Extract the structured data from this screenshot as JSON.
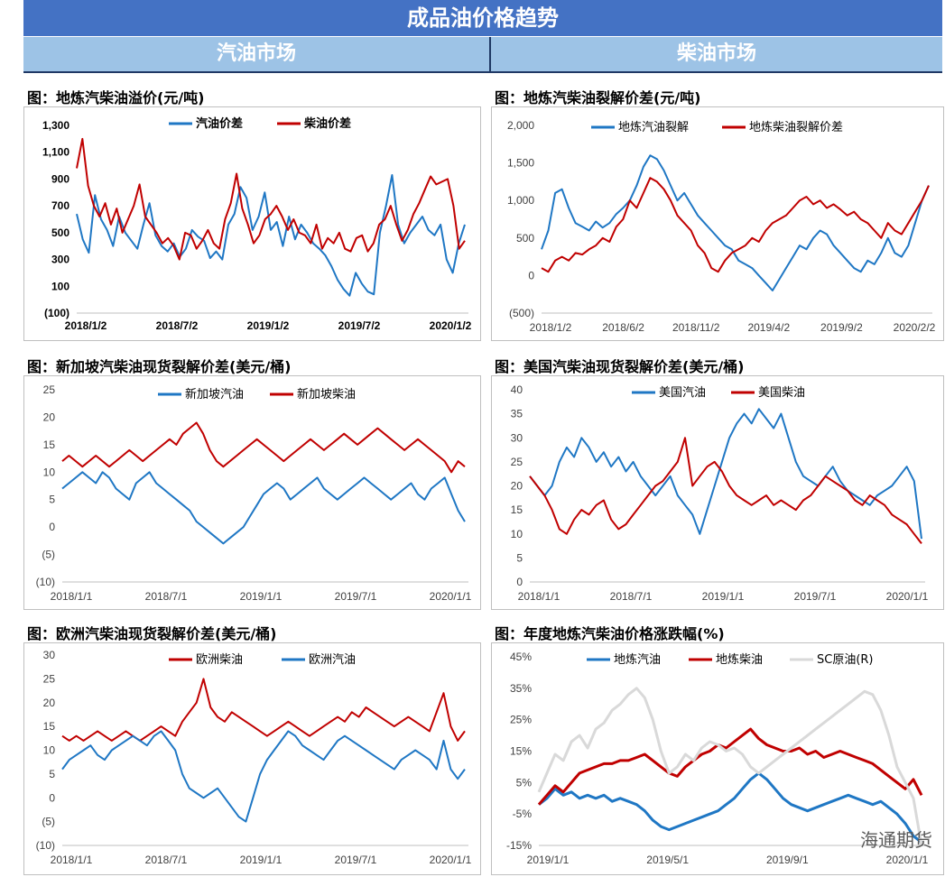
{
  "header": {
    "title": "成品油价格趋势",
    "left_section": "汽油市场",
    "right_section": "柴油市场"
  },
  "watermark": "海通期货",
  "chart_data": [
    {
      "type": "line",
      "title": "图：地炼汽柴油溢价(元/吨)",
      "x_labels": [
        "2018/1/2",
        "2018/7/2",
        "2019/1/2",
        "2019/7/2",
        "2020/1/2"
      ],
      "y_ticks": [
        "1,300",
        "1,100",
        "900",
        "700",
        "500",
        "300",
        "100",
        "(100)"
      ],
      "ylim": [
        -100,
        1300
      ],
      "series": [
        {
          "name": "汽油价差",
          "color": "#1f77c4",
          "values": [
            640,
            450,
            350,
            780,
            600,
            520,
            400,
            620,
            500,
            440,
            380,
            560,
            720,
            480,
            400,
            360,
            420,
            320,
            380,
            520,
            470,
            440,
            310,
            360,
            300,
            560,
            640,
            840,
            760,
            520,
            620,
            800,
            520,
            580,
            400,
            620,
            450,
            560,
            500,
            420,
            380,
            330,
            250,
            150,
            80,
            30,
            200,
            120,
            60,
            40,
            500,
            700,
            930,
            560,
            420,
            500,
            560,
            620,
            520,
            480,
            560,
            300,
            200,
            420,
            560
          ]
        },
        {
          "name": "柴油价差",
          "color": "#c00000",
          "values": [
            980,
            1200,
            850,
            700,
            620,
            720,
            560,
            680,
            500,
            600,
            700,
            860,
            620,
            560,
            500,
            420,
            460,
            400,
            300,
            500,
            480,
            380,
            440,
            520,
            420,
            380,
            600,
            720,
            940,
            680,
            560,
            420,
            480,
            600,
            640,
            700,
            620,
            520,
            600,
            500,
            480,
            420,
            560,
            380,
            460,
            420,
            500,
            380,
            360,
            460,
            480,
            360,
            420,
            560,
            600,
            700,
            560,
            440,
            520,
            640,
            720,
            820,
            920,
            860,
            880,
            900,
            700,
            380,
            440
          ]
        }
      ]
    },
    {
      "type": "line",
      "title": "图：地炼汽柴油裂解价差(元/吨)",
      "x_labels": [
        "2018/1/2",
        "2018/6/2",
        "2018/11/2",
        "2019/4/2",
        "2019/9/2",
        "2020/2/2"
      ],
      "y_ticks": [
        "2,000",
        "1,500",
        "1,000",
        "500",
        "0",
        "(500)"
      ],
      "ylim": [
        -500,
        2000
      ],
      "series": [
        {
          "name": "地炼汽油裂解",
          "color": "#1f77c4",
          "values": [
            350,
            600,
            1100,
            1150,
            900,
            700,
            650,
            600,
            720,
            640,
            700,
            820,
            900,
            1000,
            1200,
            1450,
            1600,
            1550,
            1400,
            1200,
            1000,
            1100,
            950,
            800,
            700,
            600,
            500,
            400,
            350,
            200,
            150,
            100,
            0,
            -100,
            -200,
            -50,
            100,
            250,
            400,
            350,
            500,
            600,
            550,
            400,
            300,
            200,
            100,
            50,
            200,
            150,
            300,
            500,
            300,
            250,
            400,
            700,
            1000,
            1200
          ]
        },
        {
          "name": "地炼柴油裂解价差",
          "color": "#c00000",
          "values": [
            100,
            50,
            200,
            250,
            200,
            300,
            280,
            350,
            400,
            500,
            450,
            650,
            750,
            1000,
            900,
            1100,
            1300,
            1250,
            1150,
            1000,
            800,
            700,
            600,
            400,
            300,
            100,
            50,
            200,
            300,
            350,
            400,
            500,
            450,
            600,
            700,
            750,
            800,
            900,
            1000,
            1050,
            950,
            1000,
            900,
            950,
            880,
            800,
            850,
            750,
            700,
            600,
            500,
            700,
            600,
            550,
            700,
            850,
            1000,
            1200
          ]
        }
      ]
    },
    {
      "type": "line",
      "title": "图：新加坡汽柴油现货裂解价差(美元/桶)",
      "x_labels": [
        "2018/1/1",
        "2018/7/1",
        "2019/1/1",
        "2019/7/1",
        "2020/1/1"
      ],
      "y_ticks": [
        "25",
        "20",
        "15",
        "10",
        "5",
        "0",
        "(5)",
        "(10)"
      ],
      "ylim": [
        -10,
        25
      ],
      "series": [
        {
          "name": "新加坡汽油",
          "color": "#1f77c4",
          "values": [
            7,
            8,
            9,
            10,
            9,
            8,
            10,
            9,
            7,
            6,
            5,
            8,
            9,
            10,
            8,
            7,
            6,
            5,
            4,
            3,
            1,
            0,
            -1,
            -2,
            -3,
            -2,
            -1,
            0,
            2,
            4,
            6,
            7,
            8,
            7,
            5,
            6,
            7,
            8,
            9,
            7,
            6,
            5,
            6,
            7,
            8,
            9,
            8,
            7,
            6,
            5,
            6,
            7,
            8,
            6,
            5,
            7,
            8,
            9,
            6,
            3,
            1
          ]
        },
        {
          "name": "新加坡柴油",
          "color": "#c00000",
          "values": [
            12,
            13,
            12,
            11,
            12,
            13,
            12,
            11,
            12,
            13,
            14,
            13,
            12,
            13,
            14,
            15,
            16,
            15,
            17,
            18,
            19,
            17,
            14,
            12,
            11,
            12,
            13,
            14,
            15,
            16,
            15,
            14,
            13,
            12,
            13,
            14,
            15,
            16,
            15,
            14,
            15,
            16,
            17,
            16,
            15,
            16,
            17,
            18,
            17,
            16,
            15,
            14,
            15,
            16,
            15,
            14,
            13,
            12,
            10,
            12,
            11
          ]
        }
      ]
    },
    {
      "type": "line",
      "title": "图：美国汽柴油现货裂解价差(美元/桶)",
      "x_labels": [
        "2018/1/1",
        "2018/7/1",
        "2019/1/1",
        "2019/7/1",
        "2020/1/1"
      ],
      "y_ticks": [
        "40",
        "35",
        "30",
        "25",
        "20",
        "15",
        "10",
        "5",
        "0"
      ],
      "ylim": [
        0,
        40
      ],
      "series": [
        {
          "name": "美国汽油",
          "color": "#1f77c4",
          "values": [
            22,
            20,
            18,
            20,
            25,
            28,
            26,
            30,
            28,
            25,
            27,
            24,
            26,
            23,
            25,
            22,
            20,
            18,
            20,
            22,
            18,
            16,
            14,
            10,
            15,
            20,
            25,
            30,
            33,
            35,
            33,
            36,
            34,
            32,
            35,
            30,
            25,
            22,
            21,
            20,
            22,
            24,
            21,
            19,
            18,
            17,
            16,
            18,
            19,
            20,
            22,
            24,
            21,
            9
          ]
        },
        {
          "name": "美国柴油",
          "color": "#c00000",
          "values": [
            22,
            20,
            18,
            15,
            11,
            10,
            13,
            15,
            14,
            16,
            17,
            13,
            11,
            12,
            14,
            16,
            18,
            20,
            21,
            23,
            25,
            30,
            20,
            22,
            24,
            25,
            23,
            20,
            18,
            17,
            16,
            17,
            18,
            16,
            17,
            16,
            15,
            17,
            18,
            20,
            22,
            21,
            20,
            19,
            17,
            16,
            18,
            17,
            16,
            14,
            13,
            12,
            10,
            8
          ]
        }
      ]
    },
    {
      "type": "line",
      "title": "图：欧洲汽柴油现货裂解价差(美元/桶)",
      "x_labels": [
        "2018/1/1",
        "2018/7/1",
        "2019/1/1",
        "2019/7/1",
        "2020/1/1"
      ],
      "y_ticks": [
        "30",
        "25",
        "20",
        "15",
        "10",
        "5",
        "0",
        "(5)",
        "(10)"
      ],
      "ylim": [
        -10,
        30
      ],
      "series": [
        {
          "name": "欧洲柴油",
          "color": "#c00000",
          "values": [
            13,
            12,
            13,
            12,
            13,
            14,
            13,
            12,
            13,
            14,
            13,
            12,
            13,
            14,
            15,
            14,
            13,
            16,
            18,
            20,
            25,
            19,
            17,
            16,
            18,
            17,
            16,
            15,
            14,
            13,
            14,
            15,
            16,
            15,
            14,
            13,
            14,
            15,
            16,
            17,
            16,
            18,
            17,
            19,
            18,
            17,
            16,
            15,
            16,
            17,
            16,
            15,
            14,
            18,
            22,
            15,
            12,
            14
          ]
        },
        {
          "name": "欧洲汽油",
          "color": "#1f77c4",
          "values": [
            6,
            8,
            9,
            10,
            11,
            9,
            8,
            10,
            11,
            12,
            13,
            12,
            11,
            13,
            14,
            12,
            10,
            5,
            2,
            1,
            0,
            1,
            2,
            0,
            -2,
            -4,
            -5,
            0,
            5,
            8,
            10,
            12,
            14,
            13,
            11,
            10,
            9,
            8,
            10,
            12,
            13,
            12,
            11,
            10,
            9,
            8,
            7,
            6,
            8,
            9,
            10,
            9,
            8,
            6,
            12,
            6,
            4,
            6
          ]
        }
      ]
    },
    {
      "type": "line",
      "title": "图：年度地炼汽柴油价格涨跌幅(%)",
      "x_labels": [
        "2019/1/1",
        "2019/5/1",
        "2019/9/1",
        "2020/1/1"
      ],
      "y_ticks": [
        "45%",
        "35%",
        "25%",
        "15%",
        "5%",
        "-5%",
        "-15%"
      ],
      "ylim": [
        -15,
        45
      ],
      "series": [
        {
          "name": "地炼汽油",
          "color": "#1f77c4",
          "values": [
            -2,
            0,
            3,
            1,
            2,
            0,
            1,
            0,
            1,
            -1,
            0,
            -1,
            -2,
            -4,
            -7,
            -9,
            -10,
            -9,
            -8,
            -7,
            -6,
            -5,
            -4,
            -2,
            0,
            3,
            6,
            8,
            6,
            3,
            0,
            -2,
            -3,
            -4,
            -3,
            -2,
            -1,
            0,
            1,
            0,
            -1,
            -2,
            -1,
            -3,
            -5,
            -8,
            -12,
            -14
          ]
        },
        {
          "name": "地炼柴油",
          "color": "#c00000",
          "values": [
            -2,
            1,
            4,
            2,
            5,
            8,
            9,
            10,
            11,
            11,
            12,
            12,
            13,
            14,
            12,
            10,
            8,
            7,
            10,
            12,
            14,
            15,
            17,
            16,
            18,
            20,
            22,
            19,
            17,
            16,
            15,
            15,
            16,
            14,
            15,
            13,
            14,
            15,
            14,
            13,
            12,
            11,
            9,
            7,
            5,
            3,
            6,
            1
          ]
        },
        {
          "name": "SC原油(R)",
          "color": "#d9d9d9",
          "values": [
            2,
            8,
            14,
            12,
            18,
            20,
            16,
            22,
            24,
            28,
            30,
            33,
            35,
            32,
            25,
            15,
            8,
            10,
            14,
            12,
            16,
            18,
            17,
            15,
            16,
            14,
            10,
            8,
            10,
            12,
            14,
            16,
            18,
            20,
            22,
            24,
            26,
            28,
            30,
            32,
            34,
            33,
            28,
            20,
            10,
            5,
            0,
            -15
          ]
        }
      ]
    }
  ]
}
